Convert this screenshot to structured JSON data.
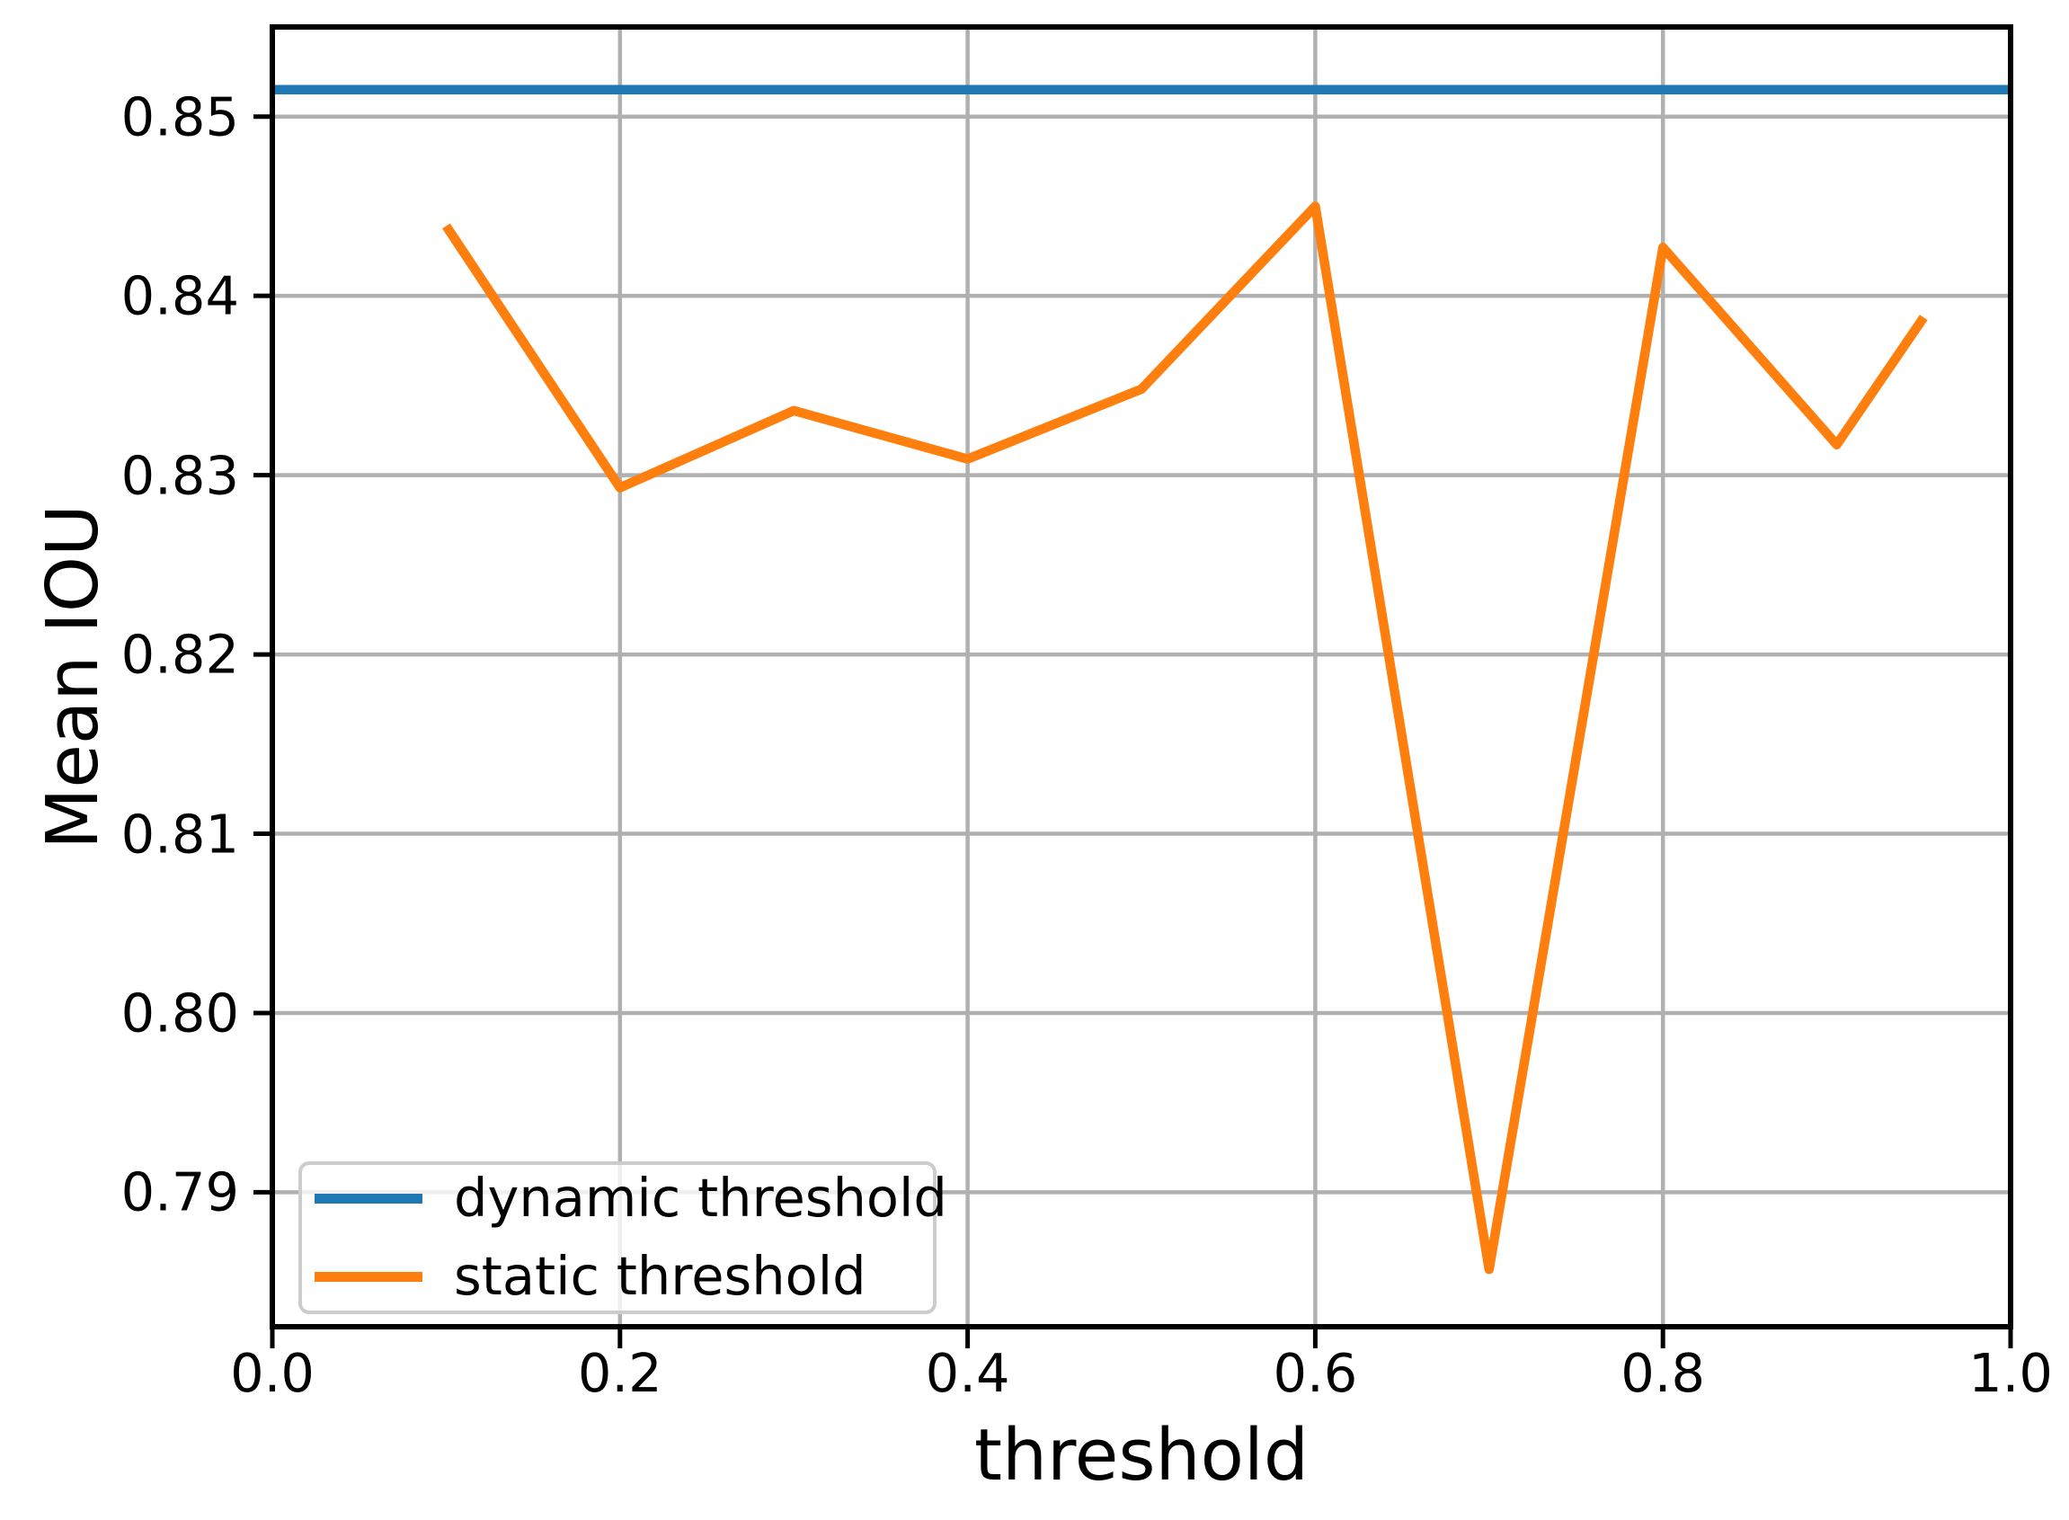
{
  "chart_data": {
    "type": "line",
    "title": "",
    "xlabel": "threshold",
    "ylabel": "Mean IOU",
    "xlim": [
      0.0,
      1.0
    ],
    "ylim": [
      0.7825,
      0.855
    ],
    "grid": true,
    "legend_position": "lower left",
    "x_ticks": [
      0.0,
      0.2,
      0.4,
      0.6,
      0.8,
      1.0
    ],
    "x_tick_labels": [
      "0.0",
      "0.2",
      "0.4",
      "0.6",
      "0.8",
      "1.0"
    ],
    "y_ticks": [
      0.79,
      0.8,
      0.81,
      0.82,
      0.83,
      0.84,
      0.85
    ],
    "y_tick_labels": [
      "0.79",
      "0.80",
      "0.81",
      "0.82",
      "0.83",
      "0.84",
      "0.85"
    ],
    "series": [
      {
        "name": "dynamic threshold",
        "color": "#1f77b4",
        "x": [
          0.0,
          1.0
        ],
        "y": [
          0.8515,
          0.8515
        ]
      },
      {
        "name": "static threshold",
        "color": "#ff7f0e",
        "x": [
          0.1,
          0.2,
          0.3,
          0.4,
          0.5,
          0.6,
          0.7,
          0.8,
          0.9,
          0.95
        ],
        "y": [
          0.8439,
          0.8293,
          0.8336,
          0.8309,
          0.8348,
          0.845,
          0.7857,
          0.8427,
          0.8317,
          0.8388
        ]
      }
    ]
  },
  "colors": {
    "background": "#ffffff",
    "grid": "#b0b0b0",
    "spine": "#000000",
    "tick_text": "#000000",
    "legend_border": "#cccccc"
  }
}
